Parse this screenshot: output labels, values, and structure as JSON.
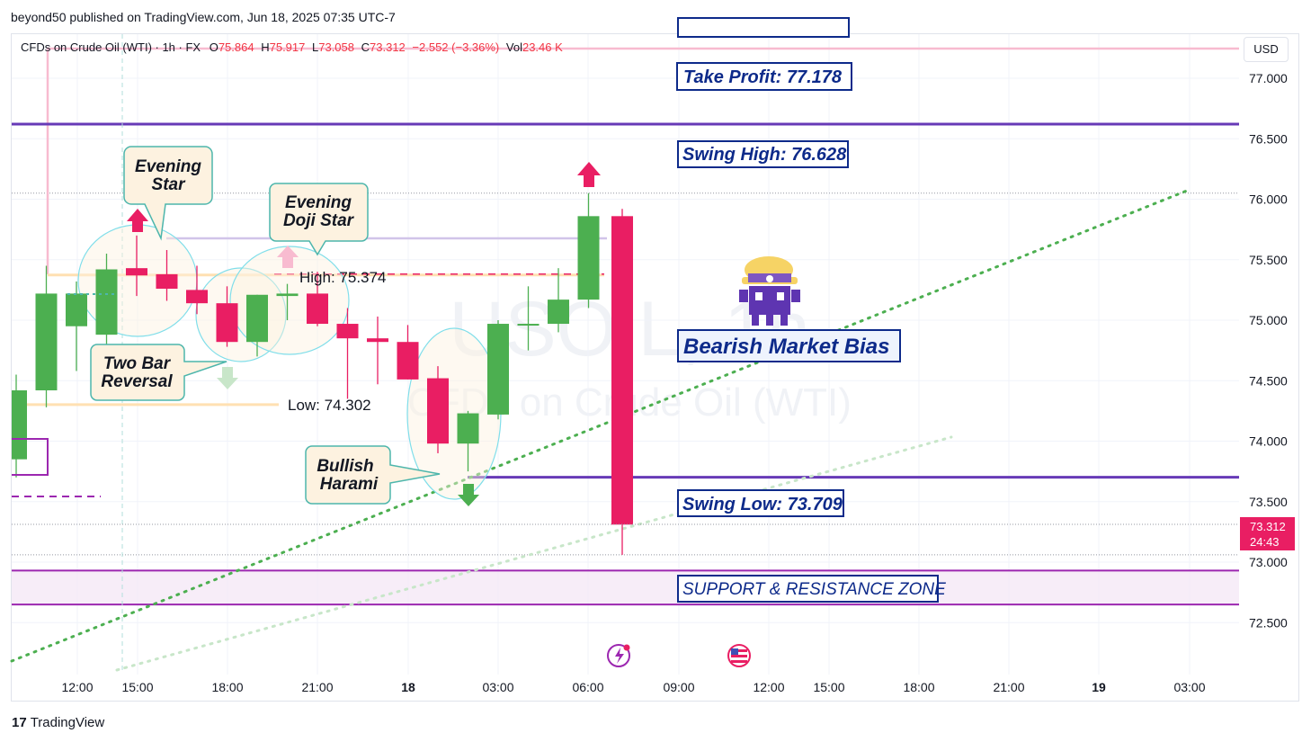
{
  "header": {
    "published": "beyond50 published on TradingView.com, Jun 18, 2025 07:35 UTC-7"
  },
  "legend": {
    "symbol": "CFDs on Crude Oil (WTI) · 1h · FX",
    "o_label": "O",
    "o_value": "75.864",
    "h_label": "H",
    "h_value": "75.917",
    "l_label": "L",
    "l_value": "73.058",
    "c_label": "C",
    "c_value": "73.312",
    "change": "−2.552 (−3.36%)",
    "vol_label": "Vol",
    "vol_value": "23.46 K"
  },
  "currency_button": "USD",
  "watermark": {
    "ticker": "USOIL, 1h",
    "name": "CFDs on Crude Oil (WTI)"
  },
  "price_tag": {
    "price": "73.312",
    "countdown": "24:43"
  },
  "footer": {
    "logo": "17",
    "brand": "TradingView"
  },
  "annotations": {
    "take_profit": "Take Profit: 77.178",
    "swing_high": "Swing High: 76.628",
    "swing_low": "Swing Low: 73.709",
    "bias": "Bearish Market Bias",
    "zone": "SUPPORT & RESISTANCE ZONE",
    "high_label": "High: 75.374",
    "low_label": "Low: 74.302",
    "evening_star": [
      "Evening",
      "Star"
    ],
    "evening_doji_star": [
      "Evening",
      "Doji Star"
    ],
    "two_bar_reversal": [
      "Two Bar",
      "Reversal"
    ],
    "bullish_harami": [
      "Bullish",
      "Harami"
    ]
  },
  "colors": {
    "up": "#4caf50",
    "down": "#e91e63",
    "label_blue": "#0d2a8a",
    "swing_line": "#673ab7",
    "zone_line": "#9c27b0",
    "take_profit_line": "#f8bbd0",
    "trend_dots": "#4caf50",
    "callout_fill": "#fdf2e0",
    "callout_border": "#4db6ac"
  },
  "chart_data": {
    "type": "candlestick",
    "title": "CFDs on Crude Oil (WTI) · 1h · FX",
    "y_axis": {
      "ticks": [
        "77.000",
        "76.500",
        "76.000",
        "75.500",
        "75.000",
        "74.500",
        "74.000",
        "73.500",
        "73.000",
        "72.500"
      ],
      "range": [
        72.3,
        77.35
      ]
    },
    "x_axis": {
      "ticks": [
        "12:00",
        "15:00",
        "18:00",
        "21:00",
        "18",
        "03:00",
        "06:00",
        "09:00",
        "12:00",
        "15:00",
        "18:00",
        "21:00",
        "19",
        "03:00"
      ]
    },
    "candles": [
      {
        "o": 73.85,
        "h": 74.55,
        "l": 73.7,
        "c": 74.42
      },
      {
        "o": 74.42,
        "h": 75.45,
        "l": 74.28,
        "c": 75.22
      },
      {
        "o": 74.95,
        "h": 75.32,
        "l": 74.58,
        "c": 75.22
      },
      {
        "o": 74.88,
        "h": 75.55,
        "l": 74.75,
        "c": 75.42
      },
      {
        "o": 75.43,
        "h": 75.7,
        "l": 75.2,
        "c": 75.37
      },
      {
        "o": 75.38,
        "h": 75.58,
        "l": 75.16,
        "c": 75.26
      },
      {
        "o": 75.25,
        "h": 75.45,
        "l": 75.05,
        "c": 75.14
      },
      {
        "o": 75.14,
        "h": 75.28,
        "l": 74.78,
        "c": 74.82
      },
      {
        "o": 74.82,
        "h": 75.21,
        "l": 74.7,
        "c": 75.21
      },
      {
        "o": 75.2,
        "h": 75.3,
        "l": 75.0,
        "c": 75.22
      },
      {
        "o": 75.22,
        "h": 75.4,
        "l": 74.95,
        "c": 74.97
      },
      {
        "o": 74.97,
        "h": 75.1,
        "l": 74.35,
        "c": 74.85
      },
      {
        "o": 74.85,
        "h": 75.03,
        "l": 74.47,
        "c": 74.82
      },
      {
        "o": 74.82,
        "h": 74.96,
        "l": 74.51,
        "c": 74.51
      },
      {
        "o": 74.52,
        "h": 74.62,
        "l": 73.9,
        "c": 73.98
      },
      {
        "o": 73.98,
        "h": 74.25,
        "l": 73.75,
        "c": 74.23
      },
      {
        "o": 74.22,
        "h": 75.0,
        "l": 74.18,
        "c": 74.97
      },
      {
        "o": 74.97,
        "h": 75.28,
        "l": 74.75,
        "c": 74.97
      },
      {
        "o": 74.97,
        "h": 75.43,
        "l": 74.9,
        "c": 75.17
      },
      {
        "o": 75.17,
        "h": 76.05,
        "l": 75.1,
        "c": 75.86
      },
      {
        "o": 75.86,
        "h": 75.92,
        "l": 73.06,
        "c": 73.31
      }
    ],
    "levels": [
      {
        "name": "Take Profit",
        "value": 77.178
      },
      {
        "name": "Swing High",
        "value": 76.628
      },
      {
        "name": "High",
        "value": 75.374
      },
      {
        "name": "Low",
        "value": 74.302
      },
      {
        "name": "Swing Low",
        "value": 73.709
      },
      {
        "name": "Support & Resistance Zone",
        "range": [
          72.65,
          72.93
        ]
      }
    ],
    "last_price": 73.312,
    "grid": true,
    "legend": "top-left"
  }
}
